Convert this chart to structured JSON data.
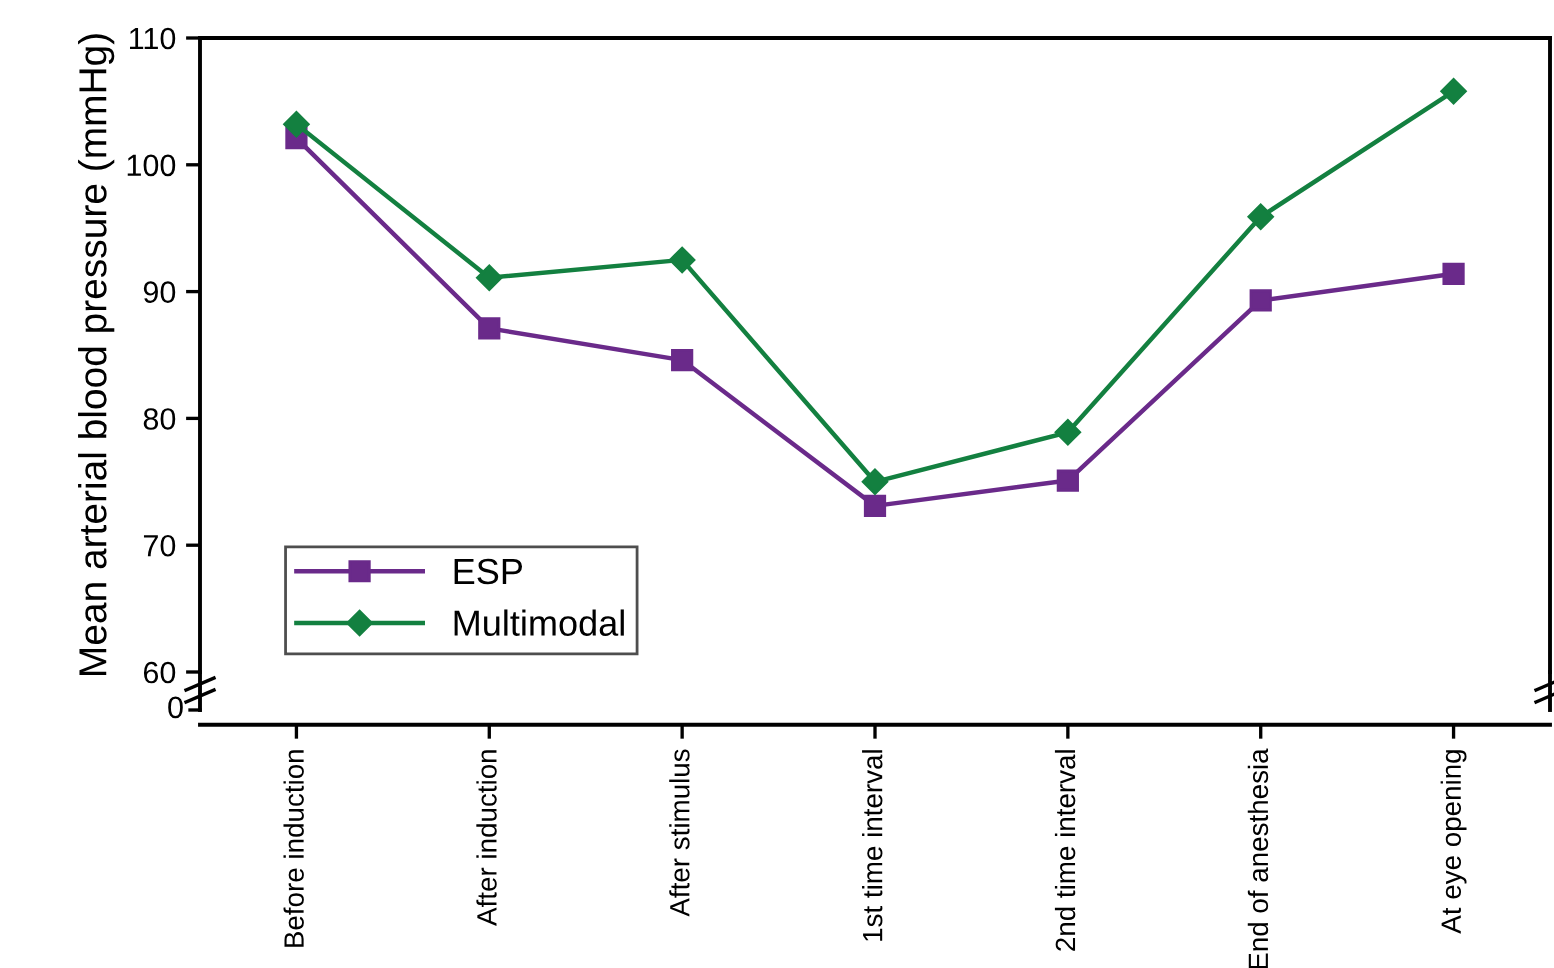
{
  "chart_data": {
    "type": "line",
    "ylabel": "Mean arterial blood pressure (mmHg)",
    "categories": [
      "Before induction",
      "After induction",
      "After stimulus",
      "1st time interval",
      "2nd time interval",
      "End of anesthesia",
      "At eye opening"
    ],
    "series": [
      {
        "name": "ESP",
        "color": "#6a2a8a",
        "marker": "square",
        "values": [
          102.1,
          87.1,
          84.6,
          73.1,
          75.1,
          89.3,
          91.4
        ]
      },
      {
        "name": "Multimodal",
        "color": "#138040",
        "marker": "diamond",
        "values": [
          103.2,
          91.1,
          92.5,
          75.0,
          78.9,
          95.9,
          105.8
        ]
      }
    ],
    "ylim": [
      60,
      110
    ],
    "yticks": [
      60,
      70,
      80,
      90,
      100,
      110
    ],
    "annotations": [
      "0"
    ],
    "grid": false,
    "legend": "bottom left",
    "line_style": "solid"
  }
}
